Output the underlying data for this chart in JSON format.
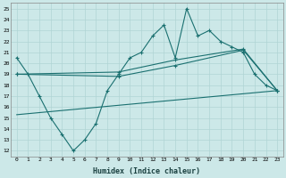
{
  "xlabel": "Humidex (Indice chaleur)",
  "ylabel": "",
  "xlim": [
    -0.5,
    23.5
  ],
  "ylim": [
    11.5,
    25.5
  ],
  "xticks": [
    0,
    1,
    2,
    3,
    4,
    5,
    6,
    7,
    8,
    9,
    10,
    11,
    12,
    13,
    14,
    15,
    16,
    17,
    18,
    19,
    20,
    21,
    22,
    23
  ],
  "yticks": [
    12,
    13,
    14,
    15,
    16,
    17,
    18,
    19,
    20,
    21,
    22,
    23,
    24,
    25
  ],
  "bg_color": "#cce8e8",
  "line_color": "#1a7070",
  "series1": [
    20.5,
    19.0,
    17.0,
    15.0,
    13.5,
    12.0,
    13.0,
    14.5,
    17.5,
    19.0,
    20.5,
    21.0,
    22.5,
    23.5,
    20.5,
    25.0,
    22.5,
    23.0,
    22.0,
    21.5,
    21.0,
    19.0,
    18.0,
    17.5
  ],
  "series2_x": [
    0,
    9,
    14,
    20,
    23
  ],
  "series2_y": [
    19.0,
    19.2,
    20.3,
    21.3,
    17.5
  ],
  "series3_x": [
    0,
    9,
    14,
    20,
    23
  ],
  "series3_y": [
    19.0,
    18.8,
    19.8,
    21.2,
    17.5
  ],
  "series4_x": [
    0,
    23
  ],
  "series4_y": [
    15.3,
    17.5
  ],
  "marker": "+"
}
